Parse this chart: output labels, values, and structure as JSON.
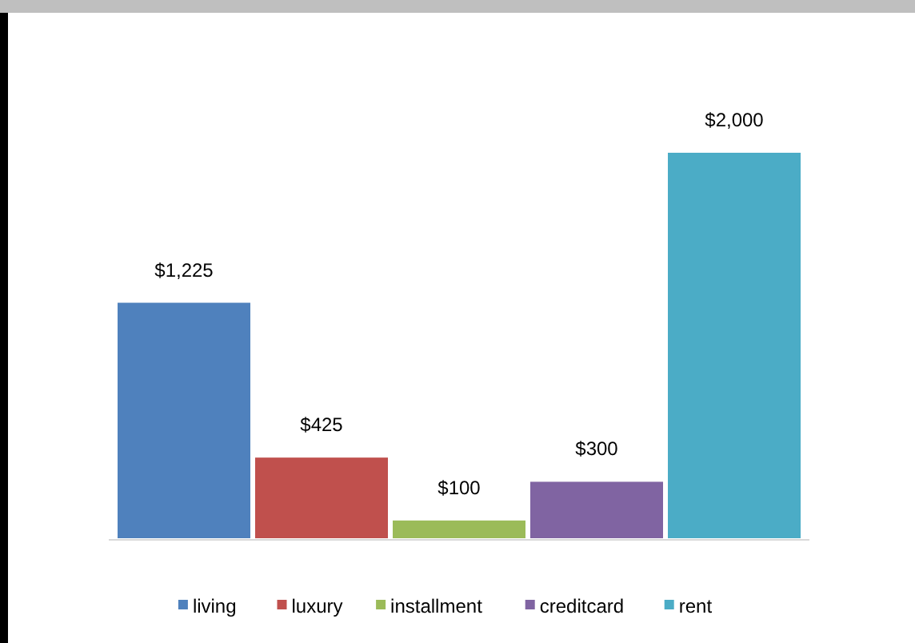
{
  "chart_data": {
    "type": "bar",
    "categories": [
      null
    ],
    "series": [
      {
        "name": "living",
        "color": "#4f81bd",
        "values": [
          1225
        ],
        "value_labels": [
          "$1,225"
        ]
      },
      {
        "name": "luxury",
        "color": "#c0504d",
        "values": [
          425
        ],
        "value_labels": [
          "$425"
        ]
      },
      {
        "name": "installment",
        "color": "#9bbb59",
        "values": [
          100
        ],
        "value_labels": [
          "$100"
        ]
      },
      {
        "name": "creditcard",
        "color": "#8064a2",
        "values": [
          300
        ],
        "value_labels": [
          "$300"
        ]
      },
      {
        "name": "rent",
        "color": "#4bacc6",
        "values": [
          2000
        ],
        "value_labels": [
          "$2,000"
        ]
      }
    ],
    "legend": "bottom"
  }
}
